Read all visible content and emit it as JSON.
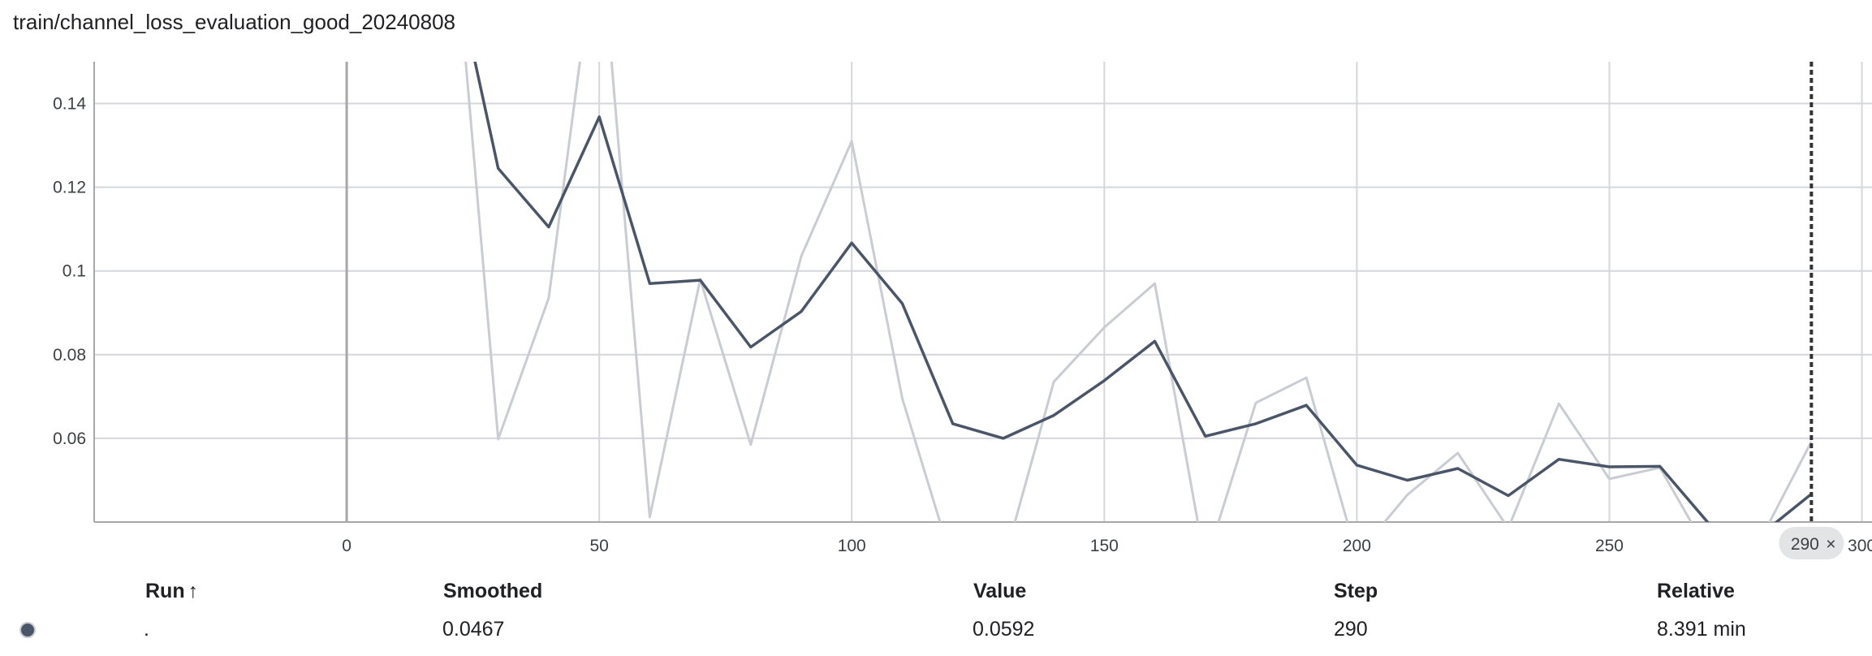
{
  "title": "train/channel_loss_evaluation_good_20240808",
  "cursor": {
    "step_label": "290",
    "close_glyph": "×"
  },
  "table": {
    "headers": {
      "run": "Run",
      "sort_glyph": "↑",
      "smoothed": "Smoothed",
      "value": "Value",
      "step": "Step",
      "relative": "Relative"
    },
    "row": {
      "run": ".",
      "smoothed": "0.0467",
      "value": "0.0592",
      "step": "290",
      "relative": "8.391 min"
    }
  },
  "colors": {
    "smoothed": "#4a5568",
    "raw": "#c9ccd3",
    "grid": "#d5d7db",
    "zero_line": "#a8a8a8",
    "axis": "#a8a8a8",
    "cursor": "#333333"
  },
  "chart_data": {
    "type": "line",
    "title": "train/channel_loss_evaluation_good_20240808",
    "xlabel": "",
    "ylabel": "",
    "xlim": [
      -50,
      302
    ],
    "ylim": [
      0.04,
      0.15
    ],
    "x_ticks": [
      0,
      50,
      100,
      150,
      200,
      250,
      300
    ],
    "x_tick_labels": [
      "0",
      "50",
      "100",
      "150",
      "200",
      "250",
      "300"
    ],
    "y_ticks": [
      0.06,
      0.08,
      0.1,
      0.12,
      0.14
    ],
    "y_tick_labels": [
      "0.06",
      "0.08",
      "0.1",
      "0.12",
      "0.14"
    ],
    "grid": true,
    "x": [
      20,
      30,
      40,
      50,
      60,
      70,
      80,
      90,
      100,
      110,
      120,
      130,
      140,
      150,
      160,
      170,
      180,
      190,
      200,
      210,
      220,
      230,
      240,
      250,
      260,
      270,
      280,
      290
    ],
    "series": [
      {
        "role": "raw",
        "values": [
          0.2,
          0.0598,
          0.0935,
          0.185,
          0.0412,
          0.098,
          0.0585,
          0.1035,
          0.131,
          0.0695,
          0.03,
          0.03,
          0.0735,
          0.0865,
          0.097,
          0.03,
          0.0685,
          0.0745,
          0.032,
          0.0465,
          0.0565,
          0.0385,
          0.0683,
          0.0503,
          0.053,
          0.032,
          0.036,
          0.0592
        ]
      },
      {
        "role": "smoothed",
        "values": [
          0.18,
          0.1245,
          0.1105,
          0.1368,
          0.097,
          0.0978,
          0.0818,
          0.0903,
          0.1067,
          0.0922,
          0.0635,
          0.06,
          0.0655,
          0.0738,
          0.0832,
          0.0605,
          0.0635,
          0.0679,
          0.0536,
          0.05,
          0.0528,
          0.0463,
          0.055,
          0.0532,
          0.0533,
          0.0392,
          0.037,
          0.0467
        ]
      }
    ],
    "cursor_x": 290
  }
}
